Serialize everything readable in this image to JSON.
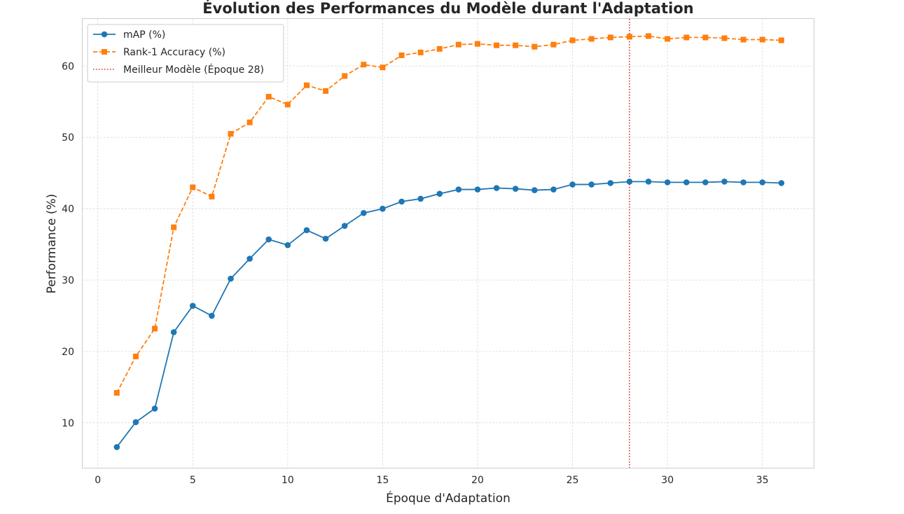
{
  "chart_data": {
    "type": "line",
    "title": "Évolution des Performances du Modèle durant l'Adaptation",
    "xlabel": "Époque d'Adaptation",
    "ylabel": "Performance (%)",
    "xlim": [
      -0.8,
      37.7
    ],
    "ylim": [
      3.7,
      66.6
    ],
    "xticks": [
      0,
      5,
      10,
      15,
      20,
      25,
      30,
      35
    ],
    "yticks": [
      10,
      20,
      30,
      40,
      50,
      60
    ],
    "grid": true,
    "legend_position": "top-left",
    "x": [
      1,
      2,
      3,
      4,
      5,
      6,
      7,
      8,
      9,
      10,
      11,
      12,
      13,
      14,
      15,
      16,
      17,
      18,
      19,
      20,
      21,
      22,
      23,
      24,
      25,
      26,
      27,
      28,
      29,
      30,
      31,
      32,
      33,
      34,
      35,
      36
    ],
    "series": [
      {
        "name": "mAP (%)",
        "color": "#1f77b4",
        "linestyle": "solid",
        "marker": "circle",
        "values": [
          6.6,
          10.1,
          12.0,
          22.7,
          26.4,
          25.0,
          30.2,
          33.0,
          35.7,
          34.9,
          37.0,
          35.8,
          37.6,
          39.4,
          40.0,
          41.0,
          41.4,
          42.1,
          42.7,
          42.7,
          42.9,
          42.8,
          42.6,
          42.7,
          43.4,
          43.4,
          43.6,
          43.8,
          43.8,
          43.7,
          43.7,
          43.7,
          43.8,
          43.7,
          43.7,
          43.6
        ]
      },
      {
        "name": "Rank-1 Accuracy (%)",
        "color": "#ff7f0e",
        "linestyle": "dashed",
        "marker": "square",
        "values": [
          14.2,
          19.3,
          23.2,
          37.4,
          43.0,
          41.7,
          50.5,
          52.1,
          55.7,
          54.6,
          57.3,
          56.5,
          58.6,
          60.2,
          59.8,
          61.5,
          61.9,
          62.4,
          63.0,
          63.1,
          62.9,
          62.9,
          62.7,
          63.0,
          63.6,
          63.8,
          64.0,
          64.1,
          64.2,
          63.8,
          64.0,
          64.0,
          63.9,
          63.7,
          63.7,
          63.6
        ]
      }
    ],
    "annotations": [
      {
        "type": "vline",
        "x": 28,
        "label": "Meilleur Modèle (Époque 28)",
        "color": "#d62728",
        "linestyle": "dotted"
      }
    ]
  }
}
